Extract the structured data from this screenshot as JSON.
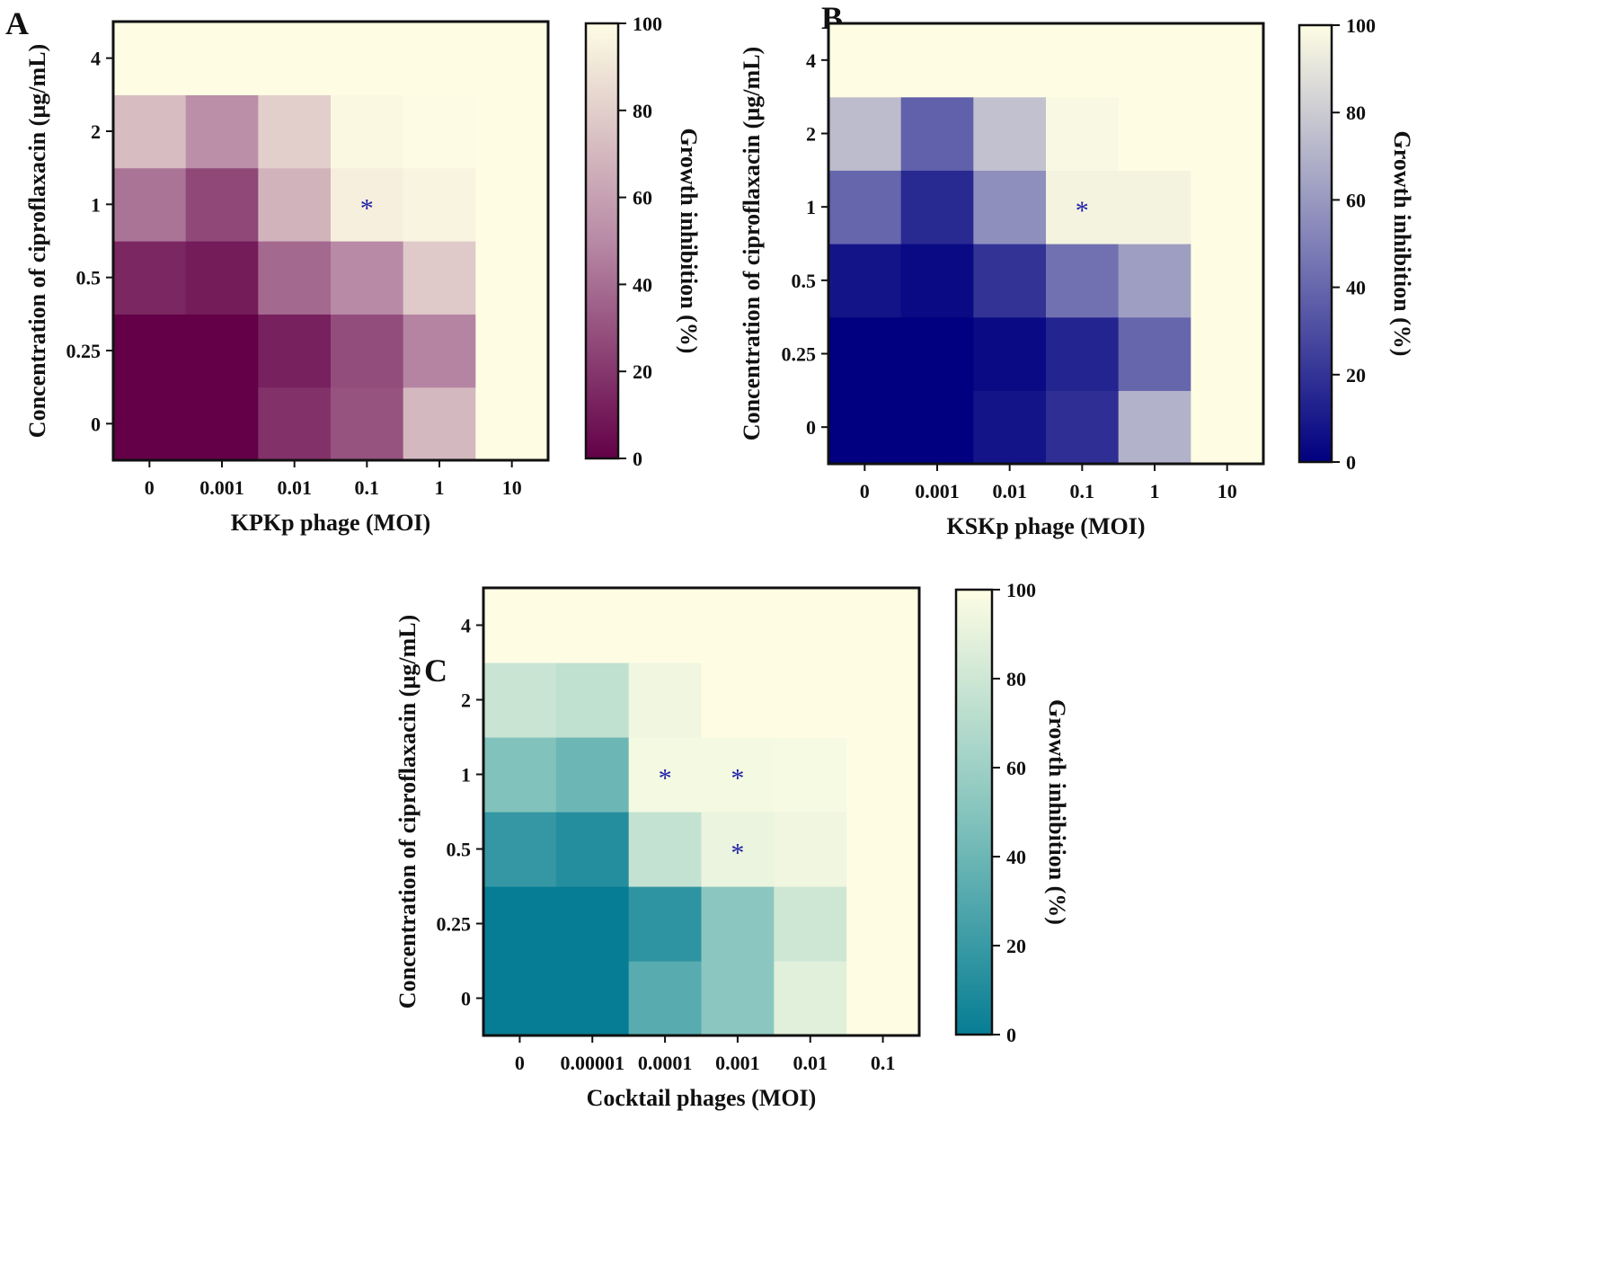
{
  "figure": {
    "panel_letters": [
      "A",
      "B",
      "C"
    ]
  },
  "chart_data": [
    {
      "type": "heatmap",
      "panel": "A",
      "xlabel": "KPKp phage (MOI)",
      "ylabel": "Concentration of ciproflaxacin (µg/mL)",
      "x_categories": [
        "0",
        "0.001",
        "0.01",
        "0.1",
        "1",
        "10"
      ],
      "y_categories": [
        "0",
        "0.25",
        "0.5",
        "1",
        "2",
        "4"
      ],
      "values": [
        [
          0,
          0,
          18,
          30,
          70,
          100
        ],
        [
          0,
          0,
          12,
          28,
          48,
          100
        ],
        [
          14,
          10,
          38,
          50,
          78,
          100
        ],
        [
          42,
          26,
          68,
          94,
          96,
          100
        ],
        [
          72,
          52,
          80,
          98,
          99,
          100
        ],
        [
          100,
          100,
          100,
          100,
          100,
          100
        ]
      ],
      "significant": [
        {
          "x": "0.1",
          "y": "1"
        }
      ],
      "colorbar": {
        "label": "Growth inhibition (%)",
        "ticks": [
          "0",
          "20",
          "40",
          "60",
          "80",
          "100"
        ],
        "range": [
          0,
          100
        ]
      },
      "colors": {
        "low": "#630047",
        "mid": "#b88aa6",
        "high": "#fefde4"
      },
      "marker_color": "#1f1fa8"
    },
    {
      "type": "heatmap",
      "panel": "B",
      "xlabel": "KSKp phage (MOI)",
      "ylabel": "Concentration of ciproflaxacin (µg/mL)",
      "x_categories": [
        "0",
        "0.001",
        "0.01",
        "0.1",
        "1",
        "10"
      ],
      "y_categories": [
        "0",
        "0.25",
        "0.5",
        "1",
        "2",
        "4"
      ],
      "values": [
        [
          0,
          0,
          8,
          18,
          70,
          100
        ],
        [
          0,
          0,
          4,
          14,
          40,
          100
        ],
        [
          8,
          4,
          20,
          44,
          62,
          100
        ],
        [
          40,
          16,
          56,
          96,
          96,
          100
        ],
        [
          74,
          38,
          76,
          98,
          100,
          100
        ],
        [
          100,
          100,
          100,
          100,
          100,
          100
        ]
      ],
      "significant": [
        {
          "x": "0.1",
          "y": "1"
        }
      ],
      "colorbar": {
        "label": "Growth inhibition (%)",
        "ticks": [
          "0",
          "20",
          "40",
          "60",
          "80",
          "100"
        ],
        "range": [
          0,
          100
        ]
      },
      "colors": {
        "low": "#000080",
        "mid": "#8080b8",
        "high": "#fefde4"
      },
      "marker_color": "#1f1fa8"
    },
    {
      "type": "heatmap",
      "panel": "C",
      "xlabel": "Cocktail phages (MOI)",
      "ylabel": "Concentration of ciproflaxacin (µg/mL)",
      "x_categories": [
        "0",
        "0.00001",
        "0.0001",
        "0.001",
        "0.01",
        "0.1"
      ],
      "y_categories": [
        "0",
        "0.25",
        "0.5",
        "1",
        "2",
        "4"
      ],
      "values": [
        [
          0,
          0,
          32,
          52,
          88,
          100
        ],
        [
          0,
          0,
          16,
          52,
          80,
          100
        ],
        [
          18,
          12,
          76,
          92,
          94,
          100
        ],
        [
          48,
          40,
          96,
          96,
          97,
          100
        ],
        [
          78,
          74,
          94,
          100,
          100,
          100
        ],
        [
          100,
          100,
          100,
          100,
          100,
          100
        ]
      ],
      "significant": [
        {
          "x": "0.0001",
          "y": "1"
        },
        {
          "x": "0.001",
          "y": "1"
        },
        {
          "x": "0.001",
          "y": "0.5"
        }
      ],
      "colorbar": {
        "label": "Growth inhibition (%)",
        "ticks": [
          "0",
          "20",
          "40",
          "60",
          "80",
          "100"
        ],
        "range": [
          0,
          100
        ]
      },
      "colors": {
        "low": "#067d94",
        "mid": "#86c5be",
        "high": "#fefde4"
      },
      "marker_color": "#1f1fa8"
    }
  ]
}
